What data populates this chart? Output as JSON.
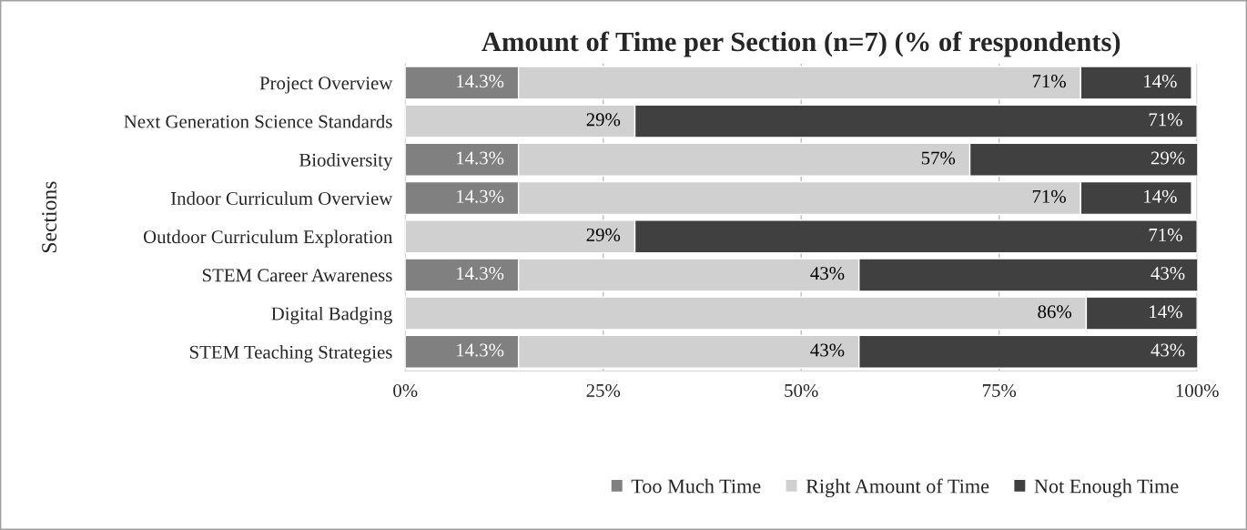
{
  "chart_data": {
    "type": "bar",
    "orientation": "horizontal",
    "stacked": true,
    "title": "Amount of Time per Section (n=7) (% of respondents)",
    "ylabel": "Sections",
    "categories": [
      "Project Overview",
      "Next Generation Science Standards",
      "Biodiversity",
      "Indoor Curriculum Overview",
      "Outdoor Curriculum Exploration",
      "STEM Career Awareness",
      "Digital Badging",
      "STEM Teaching Strategies"
    ],
    "series": [
      {
        "name": "Too Much Time",
        "color": "#808080",
        "values": [
          14.3,
          0,
          14.3,
          14.3,
          0,
          14.3,
          0,
          14.3
        ],
        "value_labels": [
          "14.3%",
          null,
          "14.3%",
          "14.3%",
          null,
          "14.3%",
          null,
          "14.3%"
        ]
      },
      {
        "name": "Right Amount of Time",
        "color": "#d0d0d0",
        "values": [
          71,
          29,
          57,
          71,
          29,
          43,
          86,
          43
        ],
        "value_labels": [
          "71%",
          "29%",
          "57%",
          "71%",
          "29%",
          "43%",
          "86%",
          "43%"
        ]
      },
      {
        "name": "Not Enough Time",
        "color": "#404040",
        "values": [
          14,
          71,
          29,
          14,
          71,
          43,
          14,
          43
        ],
        "value_labels": [
          "14%",
          "71%",
          "29%",
          "14%",
          "71%",
          "43%",
          "14%",
          "43%"
        ]
      }
    ],
    "xlim": [
      0,
      100
    ],
    "xticks": [
      {
        "value": 0,
        "label": "0%"
      },
      {
        "value": 25,
        "label": "25%"
      },
      {
        "value": 50,
        "label": "50%"
      },
      {
        "value": 75,
        "label": "75%"
      },
      {
        "value": 100,
        "label": "100%"
      }
    ],
    "grid": "x",
    "legend": "bottom"
  }
}
